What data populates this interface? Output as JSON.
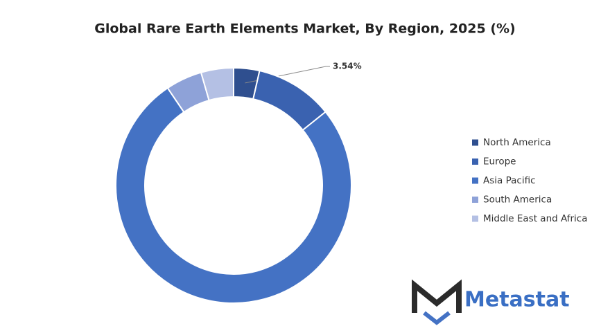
{
  "chart_data": {
    "type": "donut",
    "title": "Global Rare Earth Elements Market, By Region, 2025 (%)",
    "categories": [
      "North America",
      "Europe",
      "Asia Pacific",
      "South America",
      "Middle East and Africa"
    ],
    "values": [
      3.54,
      10.7,
      76.3,
      5.0,
      4.46
    ],
    "value_labels": [
      "3.54%",
      null,
      null,
      null,
      null
    ],
    "colors": [
      "#2f4f8f",
      "#3a62b0",
      "#4472c4",
      "#8ea2d8",
      "#b4c0e4"
    ],
    "legend": "right"
  },
  "logo": {
    "text": "Metastat"
  }
}
